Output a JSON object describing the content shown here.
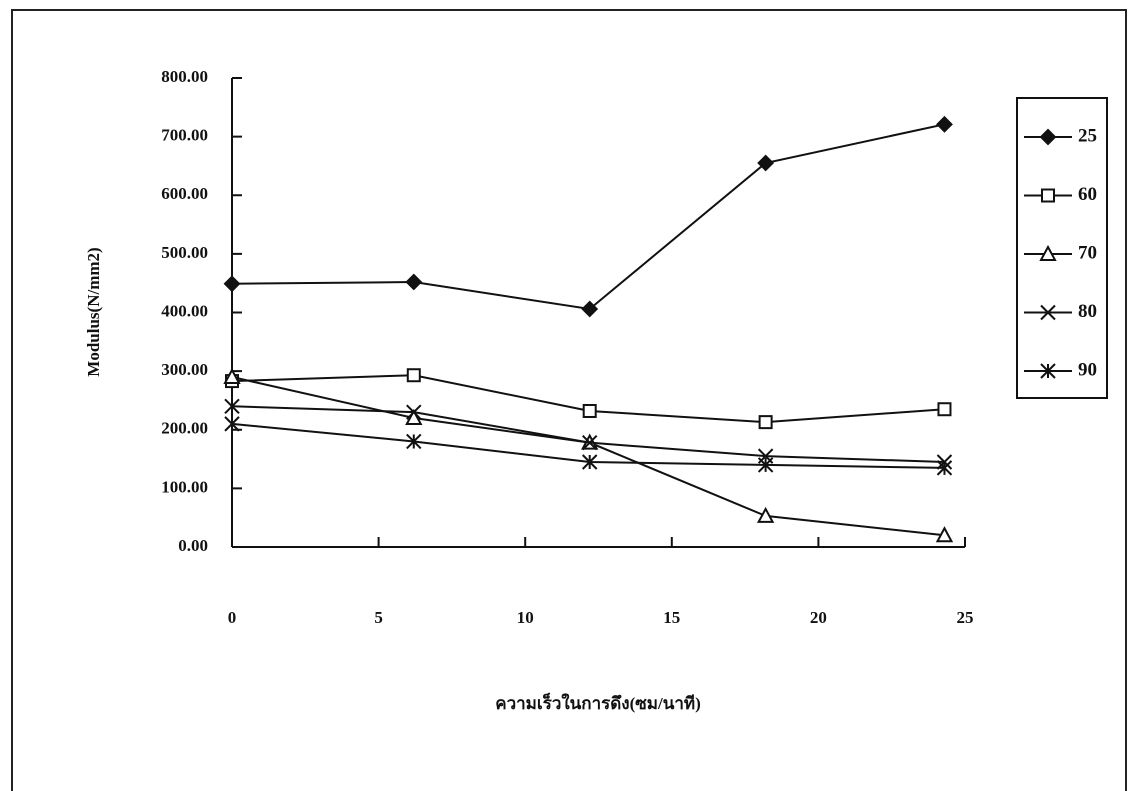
{
  "chart_data": {
    "type": "line",
    "y_label": "Modulus(N/mm2)",
    "x_label": "ความเร็วในการดึง(ซม/นาที)",
    "x": [
      0,
      6.2,
      12.2,
      18.2,
      24.3
    ],
    "xlim": [
      0,
      25
    ],
    "xticks": [
      0,
      5,
      10,
      15,
      20,
      25
    ],
    "ylim": [
      0,
      800
    ],
    "yticks": [
      {
        "value": 0,
        "label": "0.00"
      },
      {
        "value": 100,
        "label": "100.00"
      },
      {
        "value": 200,
        "label": "200.00"
      },
      {
        "value": 300,
        "label": "300.00"
      },
      {
        "value": 400,
        "label": "400.00"
      },
      {
        "value": 500,
        "label": "500.00"
      },
      {
        "value": 600,
        "label": "600.00"
      },
      {
        "value": 700,
        "label": "700.00"
      },
      {
        "value": 800,
        "label": "800.00"
      }
    ],
    "legend": "right",
    "series": [
      {
        "name": "25",
        "color": "#111111",
        "marker": "diamond",
        "values": [
          449,
          452,
          406,
          655,
          721
        ]
      },
      {
        "name": "60",
        "color": "#111111",
        "marker": "square",
        "values": [
          283,
          293,
          232,
          213,
          235
        ]
      },
      {
        "name": "70",
        "color": "#111111",
        "marker": "triangle",
        "values": [
          290,
          220,
          178,
          53,
          20
        ]
      },
      {
        "name": "80",
        "color": "#111111",
        "marker": "x",
        "values": [
          240,
          230,
          178,
          155,
          145
        ]
      },
      {
        "name": "90",
        "color": "#111111",
        "marker": "star",
        "values": [
          210,
          180,
          145,
          140,
          135
        ]
      }
    ]
  }
}
